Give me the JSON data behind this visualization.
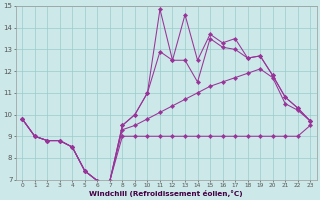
{
  "xlabel": "Windchill (Refroidissement éolien,°C)",
  "xlim": [
    -0.5,
    23.5
  ],
  "ylim": [
    7,
    15
  ],
  "xticks": [
    0,
    1,
    2,
    3,
    4,
    5,
    6,
    7,
    8,
    9,
    10,
    11,
    12,
    13,
    14,
    15,
    16,
    17,
    18,
    19,
    20,
    21,
    22,
    23
  ],
  "yticks": [
    7,
    8,
    9,
    10,
    11,
    12,
    13,
    14,
    15
  ],
  "bg_color": "#cce8e8",
  "line_color": "#993399",
  "grid_color": "#99cccc",
  "s1_y": [
    9.8,
    9.0,
    8.8,
    8.8,
    8.5,
    7.4,
    6.95,
    6.95,
    9.0,
    9.0,
    9.0,
    9.0,
    9.0,
    9.0,
    9.0,
    9.0,
    9.0,
    9.0,
    9.0,
    9.0,
    9.0,
    9.0,
    9.0,
    9.5
  ],
  "s2_y": [
    9.8,
    9.0,
    8.8,
    8.8,
    8.5,
    7.4,
    6.95,
    6.95,
    9.3,
    9.5,
    9.8,
    10.1,
    10.4,
    10.7,
    11.0,
    11.3,
    11.5,
    11.7,
    11.9,
    12.1,
    11.7,
    10.5,
    10.2,
    9.7
  ],
  "s3_y": [
    9.8,
    9.0,
    8.8,
    8.8,
    8.5,
    7.4,
    6.95,
    6.95,
    9.5,
    10.0,
    11.0,
    12.9,
    12.5,
    12.5,
    11.5,
    13.5,
    13.1,
    13.0,
    12.6,
    12.7,
    11.8,
    10.8,
    10.3,
    9.7
  ],
  "s4_y": [
    9.8,
    9.0,
    8.8,
    8.8,
    8.5,
    7.4,
    6.95,
    6.95,
    9.5,
    10.0,
    11.0,
    14.85,
    12.5,
    14.6,
    12.5,
    13.7,
    13.3,
    13.5,
    12.6,
    12.7,
    11.8,
    10.8,
    10.3,
    9.7
  ]
}
